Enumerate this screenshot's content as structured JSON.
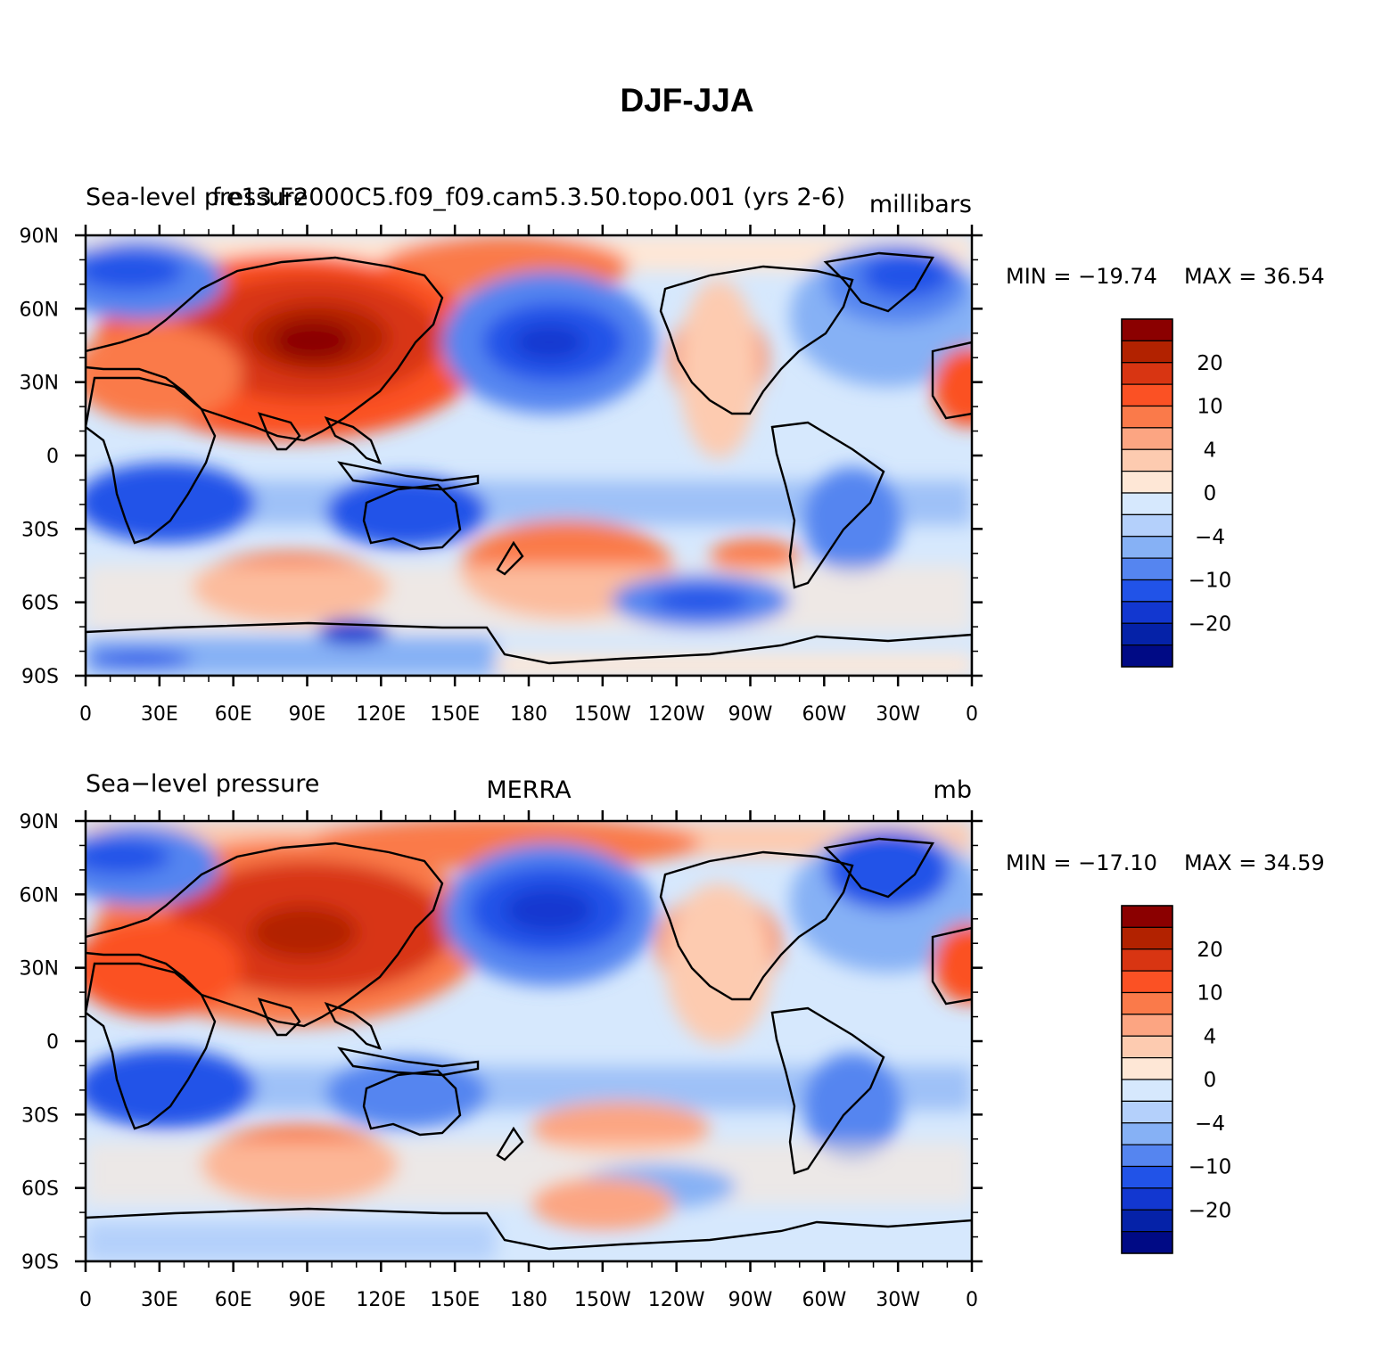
{
  "title": "DJF-JJA",
  "panels": [
    {
      "left_title": "Sea-level pressure",
      "center_title": "f.e13.F2000C5.f09_f09.cam5.3.50.topo.001 (yrs 2-6)",
      "right_title": "millibars",
      "min_label": "MIN = −19.74",
      "max_label": "MAX =   36.54"
    },
    {
      "left_title": "Sea−level pressure",
      "center_title": "MERRA",
      "right_title": "mb",
      "min_label": "MIN = −17.10",
      "max_label": "MAX =   34.59"
    }
  ],
  "lat_ticks": [
    "90N",
    "60N",
    "30N",
    "0",
    "30S",
    "60S",
    "90S"
  ],
  "lon_ticks": [
    "0",
    "30E",
    "60E",
    "90E",
    "120E",
    "150E",
    "180",
    "150W",
    "120W",
    "90W",
    "60W",
    "30W",
    "0"
  ],
  "colorbar": {
    "colors": [
      "#8b0000",
      "#b22200",
      "#d83512",
      "#fb5124",
      "#fa7a4a",
      "#fca582",
      "#fdcbb0",
      "#fee7d6",
      "#d6e8fd",
      "#b4d0fb",
      "#86b1f5",
      "#5585f0",
      "#2153e8",
      "#1237d0",
      "#0522a8",
      "#000a85"
    ],
    "labels": [
      "20",
      "10",
      "4",
      "0",
      "−4",
      "−10",
      "−20"
    ]
  },
  "map_colors": {
    "strong_positive": "#b22200",
    "positive": "#fa7a4a",
    "weak_positive": "#fee7d6",
    "weak_negative": "#d6e8fd",
    "negative": "#5585f0",
    "strong_negative": "#1237d0",
    "coastline": "#000000"
  }
}
